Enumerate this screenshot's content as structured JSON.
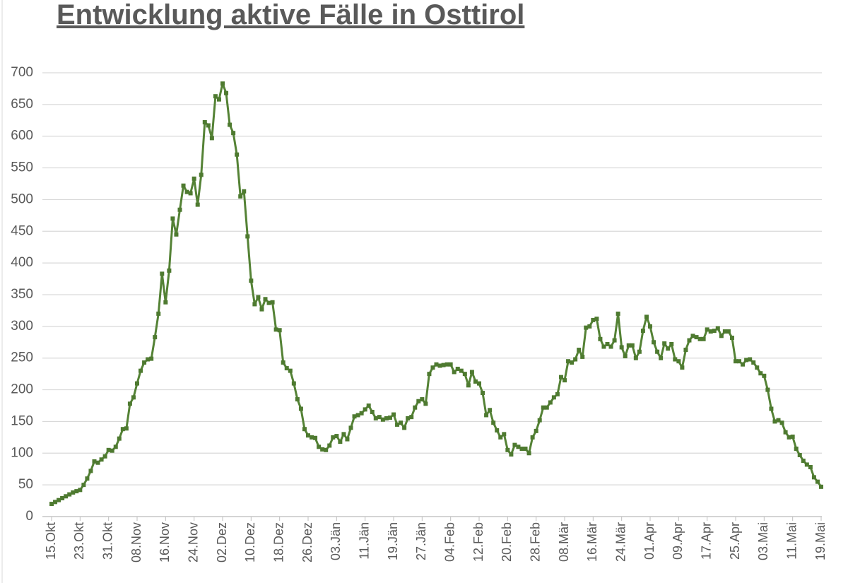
{
  "chart_data": {
    "type": "line",
    "title": "Entwicklung aktive Fälle in Osttirol",
    "categories": [
      "15.Okt",
      null,
      null,
      null,
      null,
      null,
      null,
      null,
      "23.Okt",
      null,
      null,
      null,
      null,
      null,
      null,
      null,
      "31.Okt",
      null,
      null,
      null,
      null,
      null,
      null,
      null,
      "08.Nov",
      null,
      null,
      null,
      null,
      null,
      null,
      null,
      "16.Nov",
      null,
      null,
      null,
      null,
      null,
      null,
      null,
      "24.Nov",
      null,
      null,
      null,
      null,
      null,
      null,
      null,
      "02.Dez",
      null,
      null,
      null,
      null,
      null,
      null,
      null,
      "10.Dez",
      null,
      null,
      null,
      null,
      null,
      null,
      null,
      "18.Dez",
      null,
      null,
      null,
      null,
      null,
      null,
      null,
      "26.Dez",
      null,
      null,
      null,
      null,
      null,
      null,
      null,
      "03.Jän",
      null,
      null,
      null,
      null,
      null,
      null,
      null,
      "11.Jän",
      null,
      null,
      null,
      null,
      null,
      null,
      null,
      "19.Jän",
      null,
      null,
      null,
      null,
      null,
      null,
      null,
      "27.Jän",
      null,
      null,
      null,
      null,
      null,
      null,
      null,
      "04.Feb",
      null,
      null,
      null,
      null,
      null,
      null,
      null,
      "12.Feb",
      null,
      null,
      null,
      null,
      null,
      null,
      null,
      "20.Feb",
      null,
      null,
      null,
      null,
      null,
      null,
      null,
      "28.Feb",
      null,
      null,
      null,
      null,
      null,
      null,
      null,
      "08.Mär",
      null,
      null,
      null,
      null,
      null,
      null,
      null,
      "16.Mär",
      null,
      null,
      null,
      null,
      null,
      null,
      null,
      "24.Mär",
      null,
      null,
      null,
      null,
      null,
      null,
      null,
      "01.Apr",
      null,
      null,
      null,
      null,
      null,
      null,
      null,
      "09.Apr",
      null,
      null,
      null,
      null,
      null,
      null,
      null,
      "17.Apr",
      null,
      null,
      null,
      null,
      null,
      null,
      null,
      "25.Apr",
      null,
      null,
      null,
      null,
      null,
      null,
      null,
      "03.Mai",
      null,
      null,
      null,
      null,
      null,
      null,
      null,
      "11.Mai",
      null,
      null,
      null,
      null,
      null,
      null,
      null,
      "19.Mai"
    ],
    "values": [
      20,
      23,
      26,
      29,
      32,
      35,
      38,
      40,
      42,
      50,
      60,
      72,
      87,
      85,
      90,
      95,
      105,
      104,
      110,
      123,
      138,
      139,
      178,
      188,
      210,
      230,
      243,
      248,
      249,
      283,
      320,
      383,
      338,
      388,
      470,
      445,
      484,
      522,
      512,
      510,
      533,
      492,
      539,
      622,
      617,
      597,
      663,
      658,
      683,
      668,
      618,
      605,
      571,
      505,
      513,
      442,
      372,
      335,
      346,
      327,
      343,
      337,
      338,
      295,
      294,
      243,
      234,
      230,
      210,
      185,
      170,
      138,
      128,
      125,
      124,
      110,
      106,
      105,
      112,
      125,
      127,
      118,
      130,
      122,
      140,
      158,
      160,
      163,
      169,
      175,
      165,
      155,
      157,
      153,
      155,
      156,
      161,
      145,
      148,
      140,
      155,
      157,
      172,
      182,
      185,
      178,
      225,
      235,
      240,
      238,
      239,
      240,
      240,
      228,
      233,
      230,
      225,
      207,
      228,
      213,
      210,
      195,
      160,
      168,
      148,
      136,
      125,
      130,
      105,
      98,
      113,
      110,
      107,
      107,
      100,
      125,
      135,
      152,
      172,
      172,
      180,
      188,
      193,
      220,
      215,
      245,
      243,
      248,
      263,
      252,
      298,
      300,
      310,
      312,
      280,
      268,
      272,
      268,
      278,
      320,
      267,
      253,
      270,
      270,
      250,
      260,
      293,
      315,
      300,
      275,
      260,
      250,
      273,
      265,
      272,
      248,
      245,
      235,
      263,
      278,
      285,
      283,
      280,
      280,
      295,
      292,
      293,
      297,
      285,
      292,
      292,
      282,
      245,
      245,
      240,
      247,
      248,
      243,
      235,
      226,
      222,
      200,
      170,
      150,
      152,
      148,
      133,
      125,
      126,
      107,
      97,
      88,
      82,
      78,
      62,
      55,
      47
    ],
    "color": "#548235",
    "marker_color": "#4e7a30",
    "ylim": [
      0,
      700
    ],
    "yticks": [
      0,
      50,
      100,
      150,
      200,
      250,
      300,
      350,
      400,
      450,
      500,
      550,
      600,
      650,
      700
    ],
    "grid": true
  }
}
